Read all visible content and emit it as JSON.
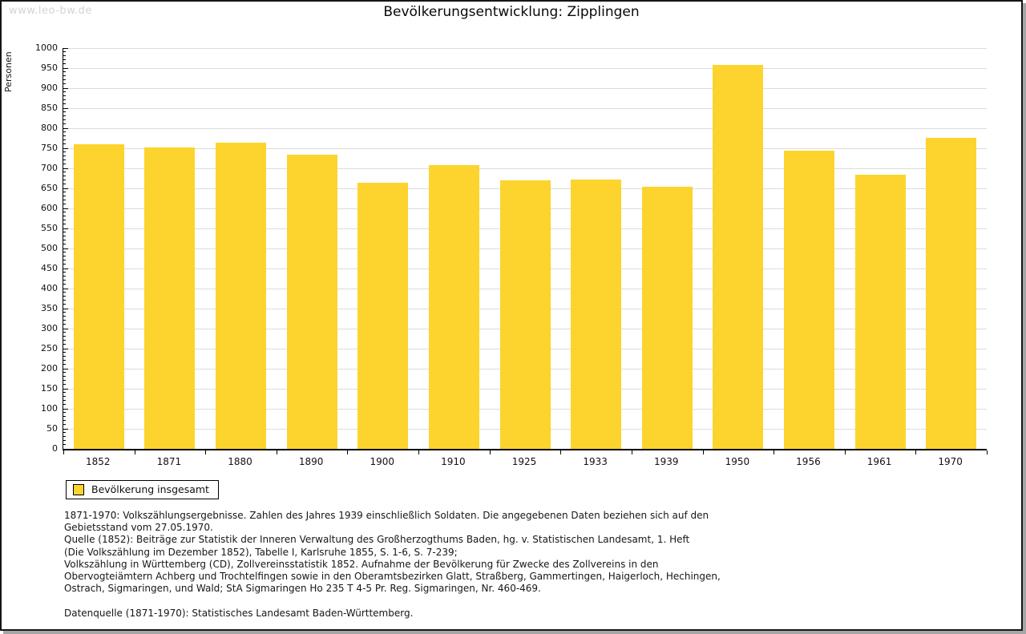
{
  "page": {
    "watermark": "www.leo-bw.de",
    "title": "Bevölkerungsentwicklung: Zipplingen"
  },
  "chart_data": {
    "type": "bar",
    "title": "Bevölkerungsentwicklung: Zipplingen",
    "xlabel": "",
    "ylabel": "Personen",
    "ylim": [
      0,
      1000
    ],
    "ytick_step": 50,
    "y_minor_tick_step": 10,
    "grid": true,
    "bar_color": "#fcd42d",
    "categories": [
      "1852",
      "1871",
      "1880",
      "1890",
      "1900",
      "1910",
      "1925",
      "1933",
      "1939",
      "1950",
      "1956",
      "1961",
      "1970"
    ],
    "series": [
      {
        "name": "Bevölkerung insgesamt",
        "values": [
          760,
          753,
          764,
          735,
          665,
          709,
          670,
          672,
          655,
          958,
          745,
          684,
          776
        ]
      }
    ],
    "legend": {
      "label": "Bevölkerung insgesamt",
      "position": "bottom-left",
      "swatch_color": "#fcd42d"
    }
  },
  "footnotes": {
    "lines": [
      "1871-1970: Volkszählungsergebnisse. Zahlen des Jahres 1939 einschließlich Soldaten. Die angegebenen Daten beziehen sich auf den",
      "Gebietsstand vom 27.05.1970.",
      "Quelle (1852): Beiträge zur Statistik der Inneren Verwaltung des Großherzogthums Baden, hg. v. Statistischen Landesamt, 1. Heft",
      "(Die Volkszählung im Dezember 1852), Tabelle I, Karlsruhe 1855, S. 1-6, S. 7-239;",
      "Volkszählung in Württemberg (CD), Zollvereinsstatistik 1852. Aufnahme der Bevölkerung für Zwecke des Zollvereins in den",
      "Obervogteiämtern Achberg und Trochtelfingen sowie in den Oberamtsbezirken Glatt, Straßberg, Gammertingen, Haigerloch, Hechingen,",
      "Ostrach, Sigmaringen, und Wald; StA Sigmaringen Ho 235 T 4-5 Pr. Reg. Sigmaringen, Nr. 460-469.",
      "",
      "Datenquelle (1871-1970): Statistisches Landesamt Baden-Württemberg."
    ]
  }
}
